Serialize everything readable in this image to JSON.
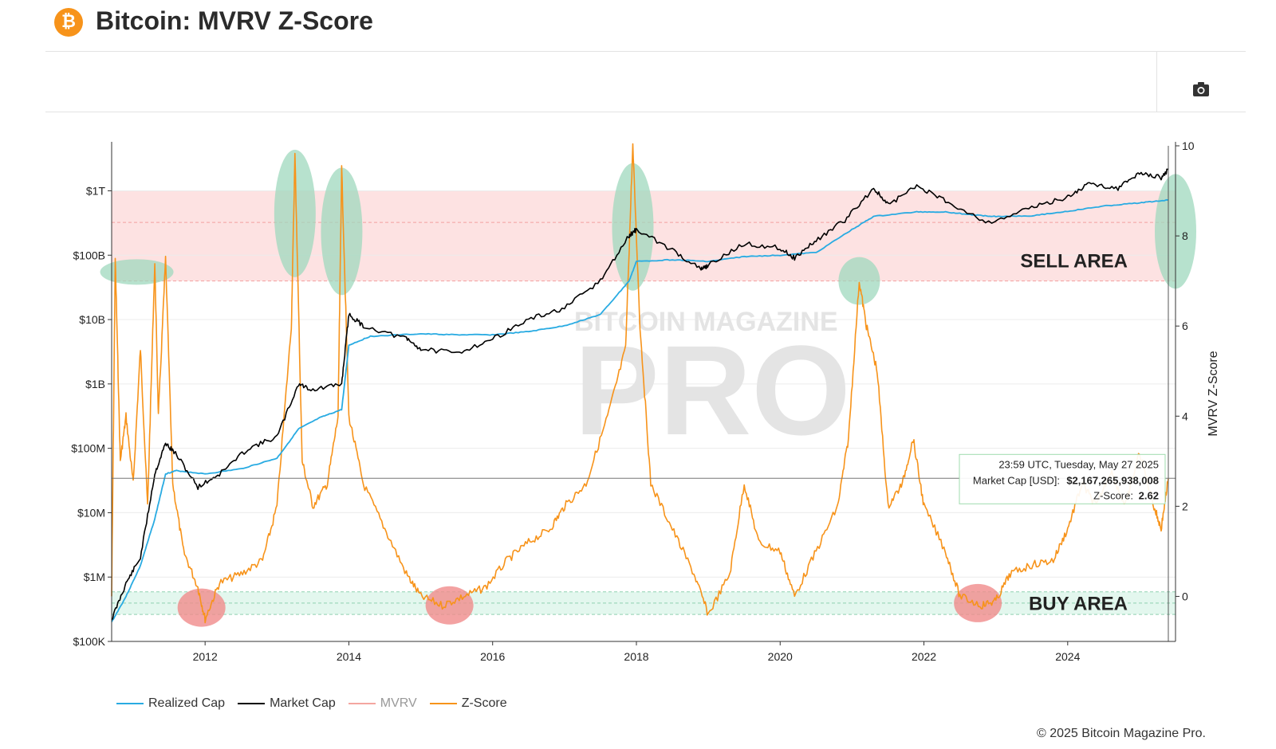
{
  "header": {
    "logo_glyph": "₿",
    "title": "Bitcoin: MVRV Z-Score",
    "camera_icon": "camera-icon"
  },
  "colors": {
    "realized_cap": "#29abe2",
    "market_cap": "#000000",
    "mvrv": "#f4a6a0",
    "zscore": "#f7931a",
    "sell_band": "#fde2e2",
    "buy_band": "#e3f7ee",
    "green_ellipse": "#9fd8bd",
    "red_ellipse": "#f08b8b"
  },
  "chart_data": {
    "type": "line",
    "title": "",
    "xlabel": "",
    "ylabel_left": "",
    "ylabel_right": "MVRV Z-Score",
    "x_range": [
      2010.7,
      2025.5
    ],
    "x_ticks": [
      2012,
      2014,
      2016,
      2018,
      2020,
      2022,
      2024
    ],
    "x_tick_labels": [
      "2012",
      "2014",
      "2016",
      "2018",
      "2020",
      "2022",
      "2024"
    ],
    "y_left_scale": "log",
    "y_left_range": [
      100000,
      5000000000000
    ],
    "y_left_ticks": [
      100000,
      1000000,
      10000000,
      100000000,
      1000000000,
      10000000000,
      100000000000,
      1000000000000
    ],
    "y_left_tick_labels": [
      "$100K",
      "$1M",
      "$10M",
      "$100M",
      "$1B",
      "$10B",
      "$100B",
      "$1T"
    ],
    "y_right_range": [
      -1,
      10
    ],
    "y_right_ticks": [
      0,
      2,
      4,
      6,
      8,
      10
    ],
    "y_right_tick_labels": [
      "0",
      "2",
      "4",
      "6",
      "8",
      "10"
    ],
    "sell_area": {
      "label": "SELL AREA",
      "zscore_range": [
        7,
        9
      ]
    },
    "buy_area": {
      "label": "BUY AREA",
      "zscore_range": [
        -0.4,
        0.1
      ]
    },
    "watermark": {
      "line1": "BITCOIN MAGAZINE",
      "line2": "PRO"
    },
    "series": [
      {
        "name": "Realized Cap",
        "axis": "left",
        "points": [
          [
            2010.7,
            200000
          ],
          [
            2010.9,
            500000
          ],
          [
            2011.1,
            1500000
          ],
          [
            2011.3,
            8000000
          ],
          [
            2011.45,
            40000000
          ],
          [
            2011.6,
            45000000
          ],
          [
            2012.0,
            40000000
          ],
          [
            2012.5,
            48000000
          ],
          [
            2013.0,
            70000000
          ],
          [
            2013.3,
            200000000
          ],
          [
            2013.6,
            300000000
          ],
          [
            2013.9,
            400000000
          ],
          [
            2014.0,
            4000000000
          ],
          [
            2014.3,
            5500000000
          ],
          [
            2015.0,
            6000000000
          ],
          [
            2015.5,
            5800000000
          ],
          [
            2016.0,
            5800000000
          ],
          [
            2016.5,
            6500000000
          ],
          [
            2017.0,
            8000000000
          ],
          [
            2017.5,
            12000000000
          ],
          [
            2017.9,
            40000000000
          ],
          [
            2018.0,
            80000000000
          ],
          [
            2018.5,
            85000000000
          ],
          [
            2019.0,
            80000000000
          ],
          [
            2019.5,
            95000000000
          ],
          [
            2020.0,
            100000000000
          ],
          [
            2020.5,
            110000000000
          ],
          [
            2021.0,
            250000000000
          ],
          [
            2021.3,
            400000000000
          ],
          [
            2021.9,
            470000000000
          ],
          [
            2022.3,
            470000000000
          ],
          [
            2022.7,
            420000000000
          ],
          [
            2023.0,
            400000000000
          ],
          [
            2023.5,
            410000000000
          ],
          [
            2024.0,
            480000000000
          ],
          [
            2024.5,
            580000000000
          ],
          [
            2025.0,
            650000000000
          ],
          [
            2025.4,
            720000000000
          ]
        ]
      },
      {
        "name": "Market Cap",
        "axis": "left",
        "points": [
          [
            2010.7,
            220000
          ],
          [
            2010.9,
            800000
          ],
          [
            2011.1,
            2000000
          ],
          [
            2011.3,
            40000000
          ],
          [
            2011.45,
            120000000
          ],
          [
            2011.6,
            80000000
          ],
          [
            2011.9,
            25000000
          ],
          [
            2012.2,
            40000000
          ],
          [
            2012.6,
            100000000
          ],
          [
            2013.0,
            150000000
          ],
          [
            2013.3,
            1000000000
          ],
          [
            2013.5,
            800000000
          ],
          [
            2013.9,
            1000000000
          ],
          [
            2014.0,
            12000000000
          ],
          [
            2014.2,
            8000000000
          ],
          [
            2014.8,
            5000000000
          ],
          [
            2015.0,
            3500000000
          ],
          [
            2015.5,
            3000000000
          ],
          [
            2016.0,
            5000000000
          ],
          [
            2016.5,
            10000000000
          ],
          [
            2017.0,
            15000000000
          ],
          [
            2017.5,
            40000000000
          ],
          [
            2017.9,
            200000000000
          ],
          [
            2018.0,
            250000000000
          ],
          [
            2018.5,
            120000000000
          ],
          [
            2018.9,
            60000000000
          ],
          [
            2019.0,
            70000000000
          ],
          [
            2019.5,
            150000000000
          ],
          [
            2020.0,
            130000000000
          ],
          [
            2020.2,
            90000000000
          ],
          [
            2020.5,
            170000000000
          ],
          [
            2020.9,
            350000000000
          ],
          [
            2021.3,
            1100000000000
          ],
          [
            2021.5,
            600000000000
          ],
          [
            2021.9,
            1200000000000
          ],
          [
            2022.3,
            700000000000
          ],
          [
            2022.9,
            320000000000
          ],
          [
            2023.5,
            550000000000
          ],
          [
            2024.0,
            800000000000
          ],
          [
            2024.3,
            1300000000000
          ],
          [
            2024.7,
            1100000000000
          ],
          [
            2025.0,
            1900000000000
          ],
          [
            2025.3,
            1600000000000
          ],
          [
            2025.4,
            2167265938008
          ]
        ]
      },
      {
        "name": "Z-Score",
        "axis": "right",
        "points": [
          [
            2010.7,
            0
          ],
          [
            2010.75,
            7.5
          ],
          [
            2010.82,
            3
          ],
          [
            2010.9,
            4
          ],
          [
            2011.0,
            2.5
          ],
          [
            2011.1,
            5.5
          ],
          [
            2011.2,
            2
          ],
          [
            2011.3,
            7.4
          ],
          [
            2011.35,
            4
          ],
          [
            2011.45,
            7.5
          ],
          [
            2011.55,
            2.5
          ],
          [
            2011.7,
            1
          ],
          [
            2011.9,
            0.2
          ],
          [
            2012.0,
            -0.5
          ],
          [
            2012.2,
            0.3
          ],
          [
            2012.5,
            0.5
          ],
          [
            2012.8,
            0.8
          ],
          [
            2013.0,
            2
          ],
          [
            2013.2,
            6
          ],
          [
            2013.25,
            9.8
          ],
          [
            2013.35,
            3
          ],
          [
            2013.5,
            2
          ],
          [
            2013.7,
            2.5
          ],
          [
            2013.85,
            4
          ],
          [
            2013.9,
            9.5
          ],
          [
            2014.0,
            4
          ],
          [
            2014.2,
            2.5
          ],
          [
            2014.5,
            1.5
          ],
          [
            2014.8,
            0.5
          ],
          [
            2015.0,
            0
          ],
          [
            2015.3,
            -0.2
          ],
          [
            2015.6,
            0
          ],
          [
            2015.9,
            0.2
          ],
          [
            2016.2,
            0.8
          ],
          [
            2016.5,
            1.2
          ],
          [
            2016.8,
            1.5
          ],
          [
            2017.0,
            2
          ],
          [
            2017.3,
            2.5
          ],
          [
            2017.6,
            4
          ],
          [
            2017.85,
            5.5
          ],
          [
            2017.95,
            10
          ],
          [
            2018.05,
            6
          ],
          [
            2018.2,
            2.5
          ],
          [
            2018.5,
            1.5
          ],
          [
            2018.8,
            0.5
          ],
          [
            2019.0,
            -0.4
          ],
          [
            2019.3,
            0.5
          ],
          [
            2019.5,
            2.5
          ],
          [
            2019.7,
            1.2
          ],
          [
            2020.0,
            1.0
          ],
          [
            2020.2,
            0
          ],
          [
            2020.5,
            1
          ],
          [
            2020.8,
            2
          ],
          [
            2020.95,
            3.5
          ],
          [
            2021.1,
            7
          ],
          [
            2021.2,
            6
          ],
          [
            2021.35,
            5
          ],
          [
            2021.5,
            2
          ],
          [
            2021.7,
            2.5
          ],
          [
            2021.85,
            3.5
          ],
          [
            2022.0,
            2
          ],
          [
            2022.3,
            1
          ],
          [
            2022.5,
            0
          ],
          [
            2022.8,
            -0.2
          ],
          [
            2023.0,
            -0.1
          ],
          [
            2023.2,
            0.5
          ],
          [
            2023.5,
            0.7
          ],
          [
            2023.8,
            0.8
          ],
          [
            2024.0,
            1.5
          ],
          [
            2024.2,
            2.5
          ],
          [
            2024.4,
            2
          ],
          [
            2024.6,
            2.8
          ],
          [
            2024.8,
            2
          ],
          [
            2025.0,
            3.2
          ],
          [
            2025.2,
            2
          ],
          [
            2025.3,
            1.5
          ],
          [
            2025.4,
            2.62
          ]
        ]
      }
    ],
    "tooltip": {
      "timestamp": "23:59 UTC, Tuesday, May 27 2025",
      "market_cap_label": "Market Cap [USD]:",
      "market_cap_value": "$2,167,265,938,008",
      "zscore_label": "Z-Score:",
      "zscore_value": "2.62",
      "x": 2025.4
    },
    "highlight_ellipses": [
      {
        "kind": "top",
        "x": 2011.05,
        "z": 7.2
      },
      {
        "kind": "top",
        "x": 2013.25,
        "z": 8.5
      },
      {
        "kind": "top",
        "x": 2013.9,
        "z": 8.1
      },
      {
        "kind": "top",
        "x": 2017.95,
        "z": 8.2
      },
      {
        "kind": "top",
        "x": 2021.1,
        "z": 7.0
      },
      {
        "kind": "top",
        "x": 2025.5,
        "z": 8.1
      },
      {
        "kind": "bottom",
        "x": 2011.95,
        "z": -0.25
      },
      {
        "kind": "bottom",
        "x": 2015.4,
        "z": -0.2
      },
      {
        "kind": "bottom",
        "x": 2022.75,
        "z": -0.15
      }
    ]
  },
  "legend": [
    {
      "label": "Realized Cap",
      "color": "#29abe2",
      "muted": false
    },
    {
      "label": "Market Cap",
      "color": "#000000",
      "muted": false
    },
    {
      "label": "MVRV",
      "color": "#f4a6a0",
      "muted": true
    },
    {
      "label": "Z-Score",
      "color": "#f7931a",
      "muted": false
    }
  ],
  "footer": {
    "copyright": "© 2025 Bitcoin Magazine Pro."
  }
}
